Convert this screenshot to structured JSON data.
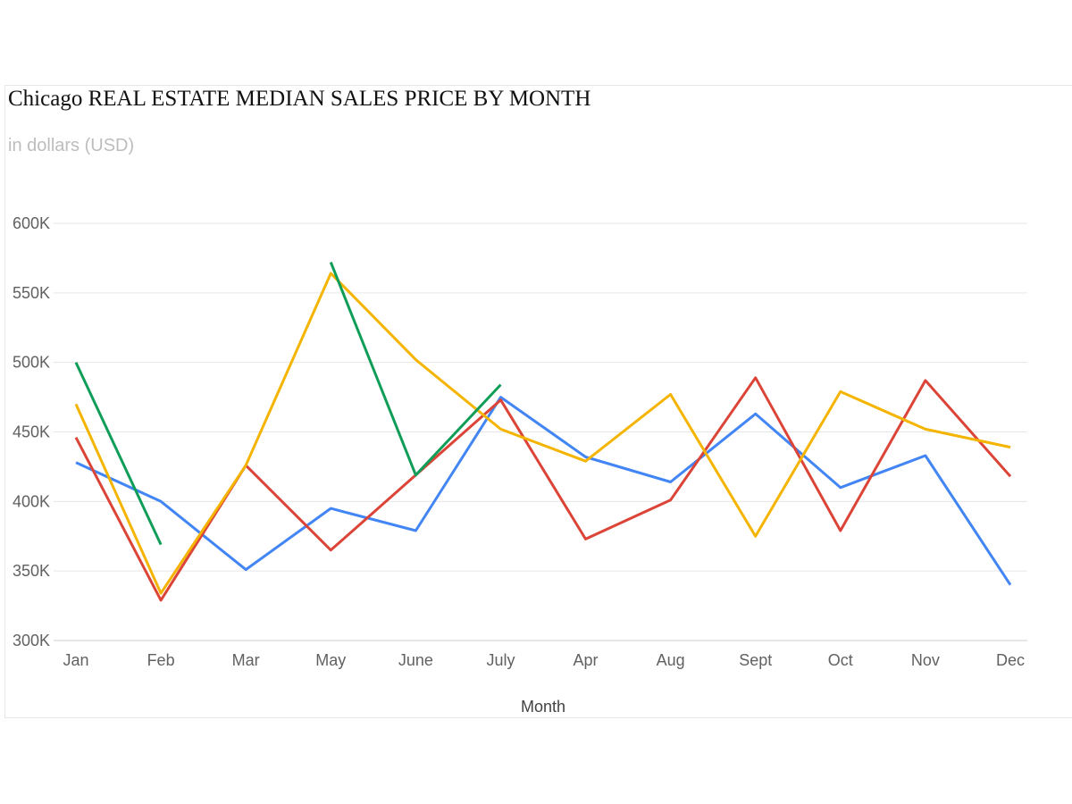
{
  "chart_data": {
    "type": "line",
    "title": "Chicago REAL ESTATE MEDIAN SALES PRICE BY MONTH",
    "subtitle": "in dollars (USD)",
    "xlabel": "Month",
    "ylabel": "",
    "categories": [
      "Jan",
      "Feb",
      "Mar",
      "May",
      "June",
      "July",
      "Apr",
      "Aug",
      "Sept",
      "Oct",
      "Nov",
      "Dec"
    ],
    "ylim": [
      300000,
      600000
    ],
    "yticks": [
      300000,
      350000,
      400000,
      450000,
      500000,
      550000,
      600000
    ],
    "ytick_labels": [
      "300K",
      "350K",
      "400K",
      "450K",
      "500K",
      "550K",
      "600K"
    ],
    "grid": true,
    "legend": "none",
    "series": [
      {
        "color": "#4285f4",
        "values": [
          428000,
          400000,
          351000,
          395000,
          379000,
          475000,
          432000,
          414000,
          463000,
          410000,
          433000,
          340000
        ]
      },
      {
        "color": "#db4437",
        "values": [
          446000,
          329000,
          426000,
          365000,
          419000,
          473000,
          373000,
          401000,
          489000,
          379000,
          487000,
          418000
        ]
      },
      {
        "color": "#f4b400",
        "values": [
          470000,
          334000,
          426000,
          564000,
          502000,
          452000,
          429000,
          477000,
          375000,
          479000,
          452000,
          439000
        ]
      },
      {
        "color": "#0f9d58",
        "values": [
          500000,
          369000,
          null,
          572000,
          419000,
          484000,
          null,
          null,
          null,
          null,
          null,
          null
        ]
      }
    ]
  }
}
